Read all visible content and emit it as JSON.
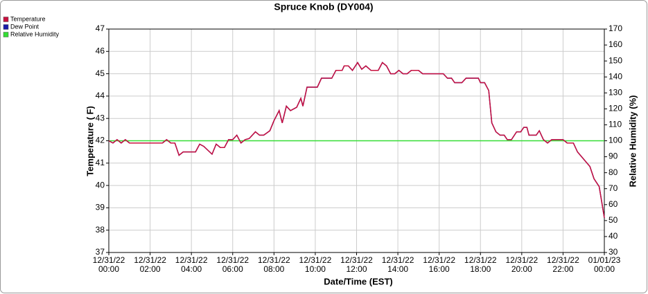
{
  "chart_data": {
    "type": "line",
    "title": "Spruce Knob (DY004)",
    "x_label": "Date/Time (EST)",
    "y_label": "Temperature ( F)",
    "y2_label": "Relative Humidity (%)",
    "xlim": [
      0,
      24
    ],
    "xticks": [
      {
        "value": 0,
        "label": "12/31/22 00:00"
      },
      {
        "value": 2,
        "label": "12/31/22 02:00"
      },
      {
        "value": 4,
        "label": "12/31/22 04:00"
      },
      {
        "value": 6,
        "label": "12/31/22 06:00"
      },
      {
        "value": 8,
        "label": "12/31/22 08:00"
      },
      {
        "value": 10,
        "label": "12/31/22 10:00"
      },
      {
        "value": 12,
        "label": "12/31/22 12:00"
      },
      {
        "value": 14,
        "label": "12/31/22 14:00"
      },
      {
        "value": 16,
        "label": "12/31/22 16:00"
      },
      {
        "value": 18,
        "label": "12/31/22 18:00"
      },
      {
        "value": 20,
        "label": "12/31/22 20:00"
      },
      {
        "value": 22,
        "label": "12/31/22 22:00"
      },
      {
        "value": 24,
        "label": "01/01/23 00:00"
      }
    ],
    "ylim": [
      37,
      47
    ],
    "yticks": [
      37,
      38,
      39,
      40,
      41,
      42,
      43,
      44,
      45,
      46,
      47
    ],
    "y2lim": [
      30,
      170
    ],
    "y2ticks": [
      30,
      40,
      50,
      60,
      70,
      80,
      90,
      100,
      110,
      120,
      130,
      140,
      150,
      160,
      170
    ],
    "grid": true,
    "legend": "top-left",
    "x": [
      0,
      0.2,
      0.4,
      0.6,
      0.8,
      1,
      2,
      2.6,
      2.8,
      3,
      3.2,
      3.4,
      3.6,
      4.2,
      4.4,
      4.6,
      5,
      5.2,
      5.4,
      5.6,
      5.8,
      6,
      6.2,
      6.4,
      6.6,
      6.8,
      7.1,
      7.3,
      7.5,
      7.8,
      8,
      8.25,
      8.4,
      8.6,
      8.8,
      9.1,
      9.3,
      9.4,
      9.6,
      10.1,
      10.3,
      10.8,
      11,
      11.3,
      11.4,
      11.6,
      11.8,
      12.05,
      12.25,
      12.45,
      12.7,
      13.05,
      13.25,
      13.45,
      13.65,
      13.85,
      14.05,
      14.25,
      14.45,
      14.65,
      15,
      15.2,
      16.2,
      16.4,
      16.6,
      16.75,
      17.1,
      17.3,
      17.9,
      18,
      18.2,
      18.4,
      18.55,
      18.75,
      18.95,
      19.15,
      19.3,
      19.5,
      19.75,
      19.95,
      20.1,
      20.25,
      20.35,
      20.7,
      20.85,
      21.05,
      21.25,
      21.45,
      22,
      22.2,
      22.5,
      22.7,
      23.3,
      23.5,
      23.75,
      23.85,
      24
    ],
    "series": [
      {
        "name": "Temperature",
        "color": "#c8103e",
        "values": [
          42.0,
          41.9,
          42.05,
          41.9,
          42.05,
          41.9,
          41.9,
          41.9,
          42.05,
          41.9,
          41.9,
          41.35,
          41.5,
          41.5,
          41.85,
          41.75,
          41.4,
          41.85,
          41.7,
          41.7,
          42.05,
          42.05,
          42.25,
          41.9,
          42.05,
          42.1,
          42.4,
          42.25,
          42.25,
          42.45,
          42.9,
          43.35,
          42.8,
          43.55,
          43.35,
          43.5,
          43.9,
          43.55,
          44.4,
          44.4,
          44.8,
          44.8,
          45.15,
          45.15,
          45.35,
          45.35,
          45.15,
          45.5,
          45.2,
          45.35,
          45.15,
          45.15,
          45.5,
          45.35,
          45.0,
          45.0,
          45.15,
          45.0,
          45.0,
          45.15,
          45.15,
          45.0,
          45.0,
          44.8,
          44.8,
          44.6,
          44.6,
          44.8,
          44.8,
          44.6,
          44.6,
          44.25,
          42.8,
          42.4,
          42.25,
          42.25,
          42.05,
          42.05,
          42.4,
          42.4,
          42.6,
          42.6,
          42.25,
          42.25,
          42.45,
          42.05,
          41.9,
          42.05,
          42.05,
          41.9,
          41.9,
          41.5,
          40.85,
          40.3,
          39.95,
          39.4,
          38.55
        ]
      },
      {
        "name": "Dew Point",
        "color": "#1a1aa8",
        "values": [
          42.0,
          41.9,
          42.05,
          41.9,
          42.05,
          41.9,
          41.9,
          41.9,
          42.05,
          41.9,
          41.9,
          41.35,
          41.5,
          41.5,
          41.85,
          41.75,
          41.4,
          41.85,
          41.7,
          41.7,
          42.05,
          42.05,
          42.25,
          41.9,
          42.05,
          42.1,
          42.4,
          42.25,
          42.25,
          42.45,
          42.9,
          43.35,
          42.8,
          43.55,
          43.35,
          43.5,
          43.9,
          43.55,
          44.4,
          44.4,
          44.8,
          44.8,
          45.15,
          45.15,
          45.35,
          45.35,
          45.15,
          45.5,
          45.2,
          45.35,
          45.15,
          45.15,
          45.5,
          45.35,
          45.0,
          45.0,
          45.15,
          45.0,
          45.0,
          45.15,
          45.15,
          45.0,
          45.0,
          44.8,
          44.8,
          44.6,
          44.6,
          44.8,
          44.8,
          44.6,
          44.6,
          44.25,
          42.8,
          42.4,
          42.25,
          42.25,
          42.05,
          42.05,
          42.4,
          42.4,
          42.6,
          42.6,
          42.25,
          42.25,
          42.45,
          42.05,
          41.9,
          42.05,
          42.05,
          41.9,
          41.9,
          41.5,
          40.85,
          40.3,
          39.95,
          39.4,
          38.55
        ]
      },
      {
        "name": "Relative Humidity",
        "color": "#33dd33",
        "axis": "y2",
        "values": [
          100,
          100,
          100,
          100,
          100,
          100,
          100,
          100,
          100,
          100,
          100,
          100,
          100,
          100,
          100,
          100,
          100,
          100,
          100,
          100,
          100,
          100,
          100,
          100,
          100,
          100,
          100,
          100,
          100,
          100,
          100,
          100,
          100,
          100,
          100,
          100,
          100,
          100,
          100,
          100,
          100,
          100,
          100,
          100,
          100,
          100,
          100,
          100,
          100,
          100,
          100,
          100,
          100,
          100,
          100,
          100,
          100,
          100,
          100,
          100,
          100,
          100,
          100,
          100,
          100,
          100,
          100,
          100,
          100,
          100,
          100,
          100,
          100,
          100,
          100,
          100,
          100,
          100,
          100,
          100,
          100,
          100,
          100,
          100,
          100,
          100,
          100,
          100,
          100,
          100,
          100,
          100,
          100,
          100,
          100,
          100,
          100
        ]
      }
    ]
  }
}
